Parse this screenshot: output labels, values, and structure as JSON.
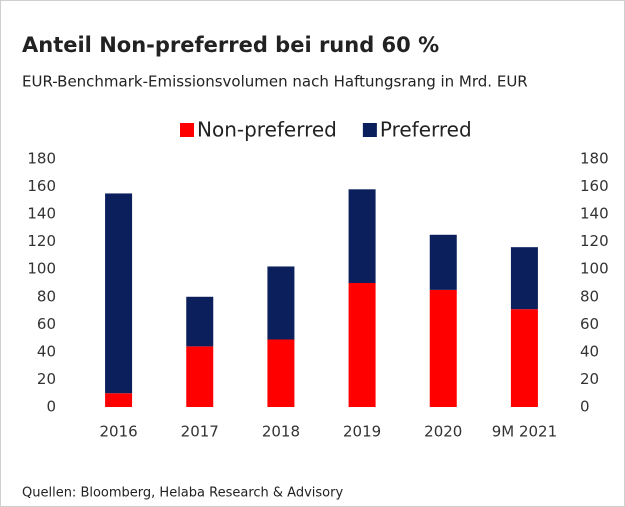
{
  "chart_data": {
    "type": "stacked_bar",
    "title": "Anteil Non-preferred bei rund 60 %",
    "subtitle": "EUR-Benchmark-Emissionsvolumen nach Haftungsrang in Mrd. EUR",
    "source": "Quellen: Bloomberg, Helaba Research & Advisory",
    "categories": [
      "2016",
      "2017",
      "2018",
      "2019",
      "2020",
      "9M 2021"
    ],
    "series": [
      {
        "name": "Non-preferred",
        "color": "#ff0000",
        "values": [
          10,
          44,
          49,
          90,
          85,
          71
        ]
      },
      {
        "name": "Preferred",
        "color": "#0a1f5c",
        "values": [
          145,
          36,
          53,
          68,
          40,
          45
        ]
      }
    ],
    "ylim": [
      0,
      180
    ],
    "yticks": [
      0,
      20,
      40,
      60,
      80,
      100,
      120,
      140,
      160,
      180
    ],
    "y2lim": [
      0,
      180
    ],
    "y2ticks": [
      0,
      20,
      40,
      60,
      80,
      100,
      120,
      140,
      160,
      180
    ],
    "legend": "top",
    "grid": false
  }
}
